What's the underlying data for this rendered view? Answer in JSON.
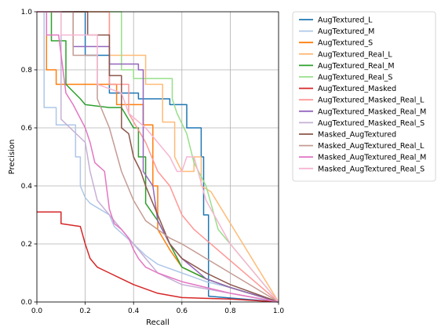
{
  "chart_data": {
    "type": "line",
    "title": "",
    "xlabel": "Recall",
    "ylabel": "Precision",
    "xlim": [
      0.0,
      1.0
    ],
    "ylim": [
      0.0,
      1.0
    ],
    "xticks": [
      "0.0",
      "0.2",
      "0.4",
      "0.6",
      "0.8",
      "1.0"
    ],
    "yticks": [
      "0.0",
      "0.2",
      "0.4",
      "0.6",
      "0.8",
      "1.0"
    ],
    "grid": true,
    "legend_position": "outside-right",
    "series": [
      {
        "name": "AugTextured_L",
        "color": "#1f77b4",
        "x": [
          0.0,
          0.2,
          0.2,
          0.3,
          0.3,
          0.42,
          0.42,
          0.55,
          0.55,
          0.62,
          0.62,
          0.68,
          0.68,
          0.69,
          0.69,
          0.71,
          0.71,
          1.0
        ],
        "y": [
          1.0,
          1.0,
          0.85,
          0.85,
          0.72,
          0.72,
          0.7,
          0.7,
          0.68,
          0.68,
          0.6,
          0.6,
          0.5,
          0.5,
          0.3,
          0.3,
          0.02,
          0.0
        ]
      },
      {
        "name": "AugTextured_M",
        "color": "#aec7e8",
        "x": [
          0.0,
          0.03,
          0.03,
          0.08,
          0.08,
          0.16,
          0.16,
          0.18,
          0.18,
          0.2,
          0.22,
          0.3,
          0.32,
          0.4,
          0.45,
          0.5,
          0.6,
          0.7,
          0.8,
          1.0
        ],
        "y": [
          1.0,
          1.0,
          0.67,
          0.67,
          0.61,
          0.61,
          0.5,
          0.5,
          0.4,
          0.36,
          0.34,
          0.3,
          0.26,
          0.2,
          0.16,
          0.13,
          0.1,
          0.07,
          0.05,
          0.0
        ]
      },
      {
        "name": "AugTextured_S",
        "color": "#ff7f0e",
        "x": [
          0.0,
          0.04,
          0.04,
          0.08,
          0.08,
          0.33,
          0.33,
          0.44,
          0.44,
          0.48,
          0.48,
          0.5,
          0.5,
          0.55,
          0.6,
          0.7,
          0.8,
          1.0
        ],
        "y": [
          1.0,
          1.0,
          0.8,
          0.8,
          0.75,
          0.75,
          0.68,
          0.68,
          0.61,
          0.61,
          0.4,
          0.4,
          0.25,
          0.18,
          0.12,
          0.08,
          0.05,
          0.0
        ]
      },
      {
        "name": "AugTextured_Real_L",
        "color": "#ffbb78",
        "x": [
          0.0,
          0.3,
          0.3,
          0.45,
          0.45,
          0.52,
          0.52,
          0.57,
          0.57,
          0.6,
          0.62,
          0.65,
          0.65,
          0.68,
          0.68,
          0.72,
          1.0
        ],
        "y": [
          1.0,
          1.0,
          0.85,
          0.85,
          0.75,
          0.75,
          0.62,
          0.62,
          0.5,
          0.45,
          0.45,
          0.45,
          0.5,
          0.5,
          0.4,
          0.38,
          0.0
        ]
      },
      {
        "name": "AugTextured_Real_M",
        "color": "#2ca02c",
        "x": [
          0.0,
          0.06,
          0.06,
          0.12,
          0.12,
          0.18,
          0.2,
          0.3,
          0.35,
          0.4,
          0.42,
          0.42,
          0.45,
          0.45,
          0.5,
          0.55,
          0.6,
          0.7,
          0.8,
          1.0
        ],
        "y": [
          1.0,
          1.0,
          0.9,
          0.9,
          0.75,
          0.7,
          0.68,
          0.67,
          0.67,
          0.6,
          0.6,
          0.5,
          0.5,
          0.34,
          0.28,
          0.2,
          0.12,
          0.08,
          0.05,
          0.0
        ]
      },
      {
        "name": "AugTextured_Real_S",
        "color": "#98df8a",
        "x": [
          0.0,
          0.35,
          0.35,
          0.4,
          0.4,
          0.56,
          0.56,
          0.58,
          0.62,
          0.65,
          0.7,
          0.75,
          1.0
        ],
        "y": [
          1.0,
          1.0,
          0.8,
          0.8,
          0.77,
          0.77,
          0.7,
          0.65,
          0.58,
          0.48,
          0.4,
          0.25,
          0.0
        ]
      },
      {
        "name": "AugTextured_Masked",
        "color": "#d62728",
        "x": [
          0.0,
          0.1,
          0.1,
          0.18,
          0.2,
          0.22,
          0.25,
          0.3,
          0.35,
          0.4,
          0.5,
          0.6,
          0.8,
          1.0
        ],
        "y": [
          0.31,
          0.31,
          0.27,
          0.26,
          0.2,
          0.15,
          0.12,
          0.1,
          0.08,
          0.06,
          0.03,
          0.015,
          0.01,
          0.0
        ]
      },
      {
        "name": "AugTextured_Masked_Real_L",
        "color": "#ff9896",
        "x": [
          0.0,
          0.3,
          0.3,
          0.38,
          0.38,
          0.45,
          0.5,
          0.55,
          0.6,
          0.65,
          1.0
        ],
        "y": [
          1.0,
          1.0,
          0.75,
          0.75,
          0.65,
          0.55,
          0.45,
          0.4,
          0.3,
          0.25,
          0.0
        ]
      },
      {
        "name": "AugTextured_Masked_Real_M",
        "color": "#9467bd",
        "x": [
          0.0,
          0.15,
          0.15,
          0.3,
          0.3,
          0.42,
          0.42,
          0.44,
          0.44,
          0.48,
          0.5,
          0.55,
          0.6,
          0.7,
          0.8,
          1.0
        ],
        "y": [
          1.0,
          1.0,
          0.88,
          0.88,
          0.82,
          0.82,
          0.8,
          0.8,
          0.45,
          0.4,
          0.28,
          0.2,
          0.15,
          0.08,
          0.05,
          0.0
        ]
      },
      {
        "name": "AugTextured_Masked_Real_S",
        "color": "#c5b0d5",
        "x": [
          0.0,
          0.1,
          0.1,
          0.2,
          0.22,
          0.25,
          0.3,
          0.35,
          0.4,
          0.45,
          0.5,
          0.55,
          0.6,
          1.0
        ],
        "y": [
          1.0,
          1.0,
          0.63,
          0.55,
          0.45,
          0.35,
          0.3,
          0.25,
          0.2,
          0.15,
          0.1,
          0.08,
          0.06,
          0.0
        ]
      },
      {
        "name": "Masked_AugTextured",
        "color": "#8c564b",
        "x": [
          0.0,
          0.21,
          0.21,
          0.3,
          0.3,
          0.35,
          0.35,
          0.38,
          0.4,
          0.43,
          0.45,
          0.5,
          0.55,
          0.6,
          0.7,
          0.8,
          1.0
        ],
        "y": [
          1.0,
          1.0,
          0.92,
          0.92,
          0.78,
          0.78,
          0.6,
          0.58,
          0.5,
          0.45,
          0.4,
          0.3,
          0.2,
          0.15,
          0.1,
          0.06,
          0.0
        ]
      },
      {
        "name": "Masked_AugTextured_Real_L",
        "color": "#c49c94",
        "x": [
          0.0,
          0.15,
          0.15,
          0.25,
          0.25,
          0.3,
          0.35,
          0.4,
          0.45,
          0.5,
          0.55,
          0.6,
          0.7,
          0.8,
          1.0
        ],
        "y": [
          1.0,
          1.0,
          0.85,
          0.85,
          0.7,
          0.6,
          0.45,
          0.35,
          0.28,
          0.25,
          0.22,
          0.2,
          0.15,
          0.1,
          0.0
        ]
      },
      {
        "name": "Masked_AugTextured_Real_M",
        "color": "#e377c2",
        "x": [
          0.0,
          0.04,
          0.04,
          0.09,
          0.12,
          0.15,
          0.2,
          0.22,
          0.24,
          0.28,
          0.3,
          0.32,
          0.35,
          0.38,
          0.4,
          0.42,
          0.45,
          0.5,
          0.6,
          0.7,
          0.8,
          1.0
        ],
        "y": [
          1.0,
          1.0,
          0.92,
          0.92,
          0.72,
          0.68,
          0.6,
          0.55,
          0.48,
          0.45,
          0.32,
          0.27,
          0.25,
          0.22,
          0.18,
          0.15,
          0.12,
          0.1,
          0.07,
          0.05,
          0.03,
          0.0
        ]
      },
      {
        "name": "Masked_AugTextured_Real_S",
        "color": "#f7b6d2",
        "x": [
          0.0,
          0.1,
          0.1,
          0.25,
          0.25,
          0.35,
          0.38,
          0.45,
          0.5,
          0.55,
          0.58,
          0.6,
          0.62,
          0.65,
          0.7,
          0.8,
          1.0
        ],
        "y": [
          1.0,
          1.0,
          0.92,
          0.92,
          0.75,
          0.72,
          0.65,
          0.6,
          0.55,
          0.5,
          0.45,
          0.45,
          0.5,
          0.5,
          0.35,
          0.2,
          0.0
        ]
      }
    ]
  }
}
